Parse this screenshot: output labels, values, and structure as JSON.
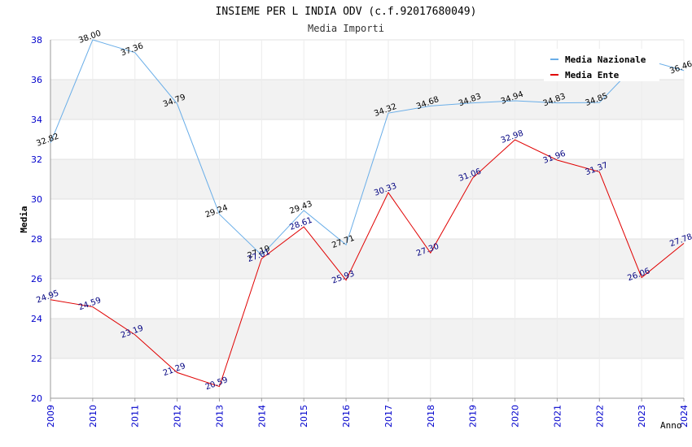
{
  "chart_data": {
    "type": "line",
    "title": "INSIEME PER L INDIA ODV (c.f.92017680049)",
    "subtitle": "Media Importi",
    "ylabel": "Media",
    "xlabel": "Anno",
    "ylim": [
      20,
      38
    ],
    "yticks": [
      20,
      22,
      24,
      26,
      28,
      30,
      32,
      34,
      36,
      38
    ],
    "grid": true,
    "legend_position": "top-right",
    "x": [
      "2009",
      "2010",
      "2011",
      "2012",
      "2013",
      "2014",
      "2015",
      "2016",
      "2017",
      "2018",
      "2019",
      "2020",
      "2021",
      "2022",
      "2023",
      "2024"
    ],
    "series": [
      {
        "name": "Media Nazionale",
        "color": "#6aaee8",
        "label_color": "#000000",
        "values": [
          32.82,
          38.0,
          37.36,
          34.79,
          29.24,
          27.19,
          29.43,
          27.71,
          34.32,
          34.68,
          34.83,
          34.94,
          34.83,
          34.85,
          37.05,
          36.46
        ]
      },
      {
        "name": "Media Ente",
        "color": "#e00000",
        "label_color": "#000080",
        "values": [
          24.95,
          24.59,
          23.19,
          21.29,
          20.59,
          27.01,
          28.61,
          25.93,
          30.33,
          27.3,
          31.06,
          32.98,
          31.96,
          31.37,
          26.06,
          27.78
        ]
      }
    ]
  }
}
